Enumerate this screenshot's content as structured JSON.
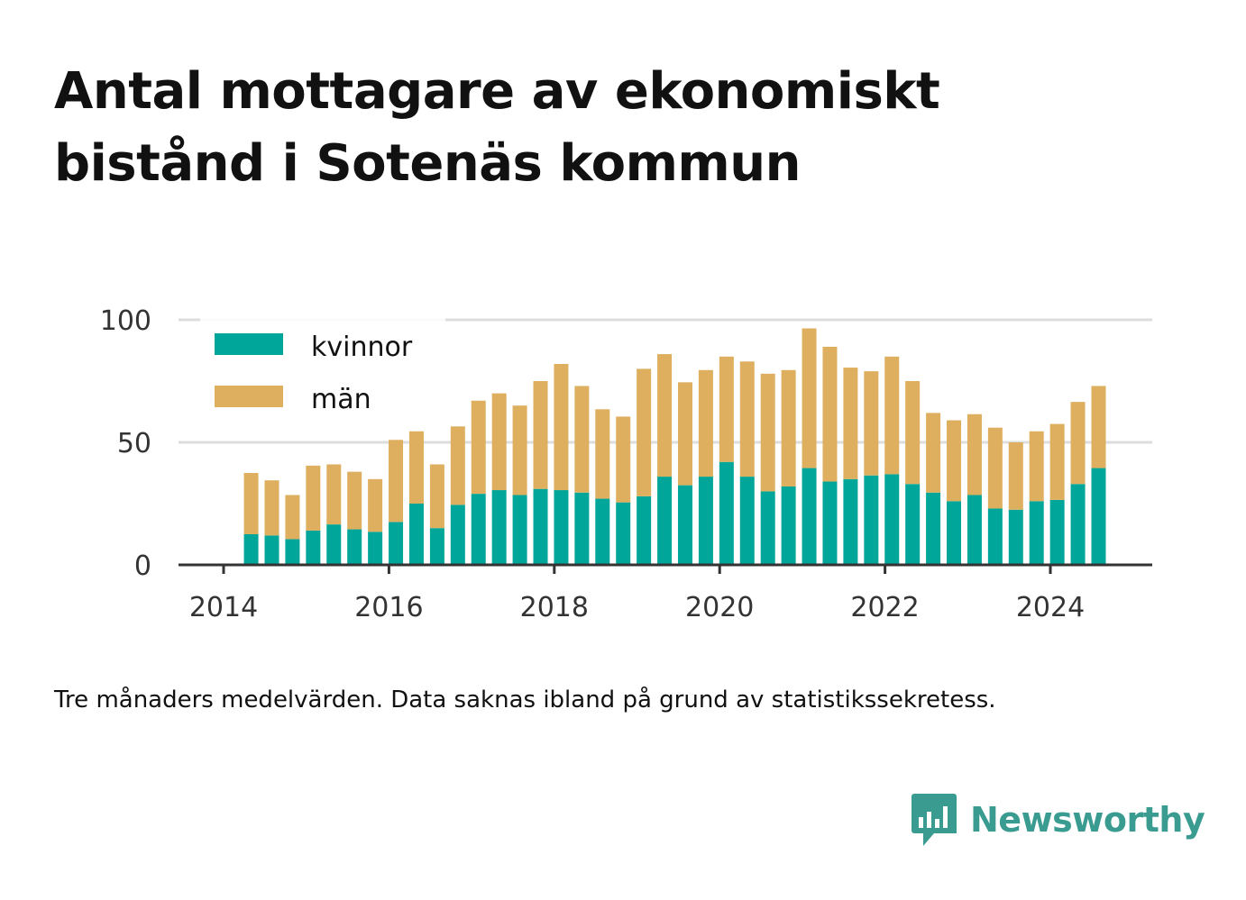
{
  "title": "Antal mottagare av ekonomiskt bistånd i Sotenäs kommun",
  "caption": "Tre månaders medelvärden. Data saknas ibland på grund av statistikssekretess.",
  "brand": "Newsworthy",
  "colors": {
    "kvinnor": "#00a699",
    "man": "#deaf5e",
    "grid": "#dddddd",
    "axis": "#333333"
  },
  "chart_data": {
    "type": "bar",
    "stacked": true,
    "x_ticks": [
      "2014",
      "2016",
      "2018",
      "2020",
      "2022",
      "2024"
    ],
    "y_ticks": [
      "0",
      "50",
      "100"
    ],
    "ylim": [
      0,
      100
    ],
    "legend_position": "top-left",
    "x": [
      "2014-05",
      "2014-08",
      "2014-11",
      "2015-02",
      "2015-05",
      "2015-08",
      "2015-11",
      "2016-02",
      "2016-05",
      "2016-08",
      "2016-11",
      "2017-02",
      "2017-05",
      "2017-08",
      "2017-11",
      "2018-02",
      "2018-05",
      "2018-08",
      "2018-11",
      "2019-02",
      "2019-05",
      "2019-08",
      "2019-11",
      "2020-02",
      "2020-05",
      "2020-08",
      "2020-11",
      "2021-02",
      "2021-05",
      "2021-08",
      "2021-11",
      "2022-02",
      "2022-05",
      "2022-08",
      "2022-11",
      "2023-02",
      "2023-05",
      "2023-08",
      "2023-11",
      "2024-02",
      "2024-05",
      "2024-08"
    ],
    "series": [
      {
        "name": "kvinnor",
        "values": [
          12.5,
          12,
          10.5,
          14,
          16.5,
          14.5,
          13.5,
          17.5,
          25,
          15,
          24.5,
          29,
          30.5,
          28.5,
          31,
          30.5,
          29.5,
          27,
          25.5,
          28,
          36,
          32.5,
          36,
          42,
          36,
          30,
          32,
          39.5,
          34,
          35,
          36.5,
          37,
          33,
          29.5,
          26,
          28.5,
          23,
          22.5,
          26,
          26.5,
          33,
          39.5
        ]
      },
      {
        "name": "män",
        "values": [
          25,
          22.5,
          18,
          26.5,
          24.5,
          23.5,
          21.5,
          33.5,
          29.5,
          26,
          32,
          38,
          39.5,
          36.5,
          44,
          51.5,
          43.5,
          36.5,
          35,
          52,
          50,
          42,
          43.5,
          43,
          47,
          48,
          47.5,
          57,
          55,
          45.5,
          42.5,
          48,
          42,
          32.5,
          33,
          33,
          33,
          27.5,
          28.5,
          31,
          33.5,
          33.5
        ]
      }
    ]
  }
}
